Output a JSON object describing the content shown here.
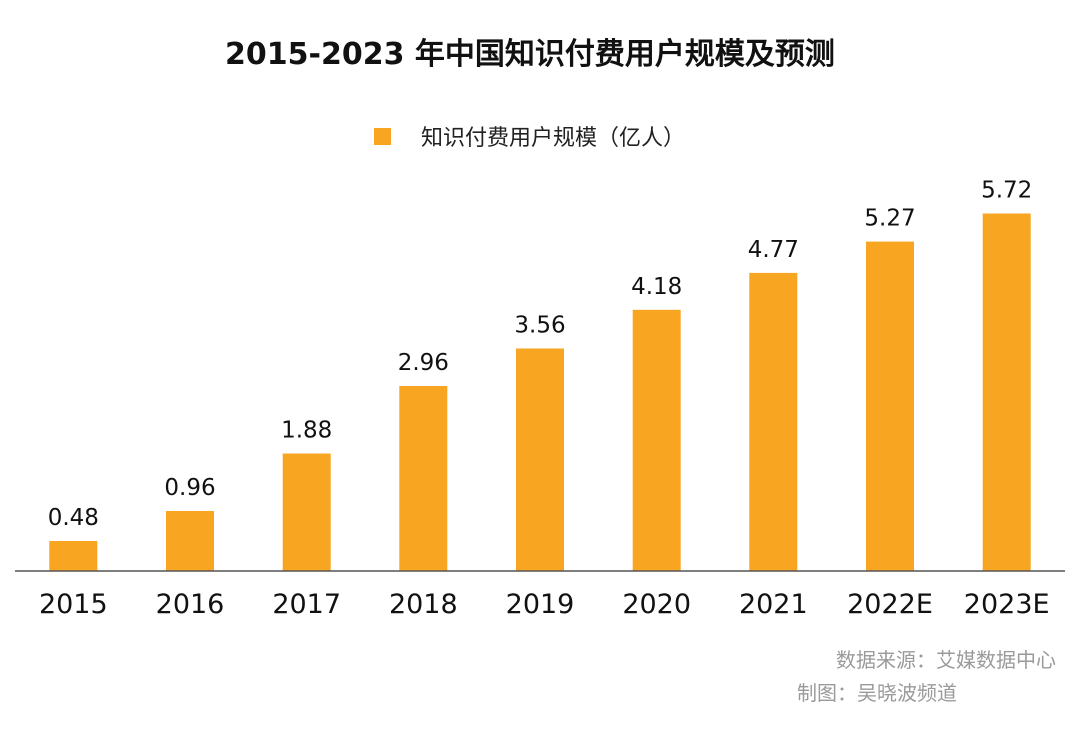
{
  "chart_data": {
    "type": "bar",
    "title": "2015-2023 年中国知识付费用户规模及预测",
    "xlabel": "",
    "ylabel": "",
    "ylim": [
      0,
      6.4
    ],
    "grid": false,
    "legend_position": "top-center",
    "categories": [
      "2015",
      "2016",
      "2017",
      "2018",
      "2019",
      "2020",
      "2021",
      "2022E",
      "2023E"
    ],
    "series": [
      {
        "name": "知识付费用户规模（亿人）",
        "values": [
          0.48,
          0.96,
          1.88,
          2.96,
          3.56,
          4.18,
          4.77,
          5.27,
          5.72
        ],
        "labels": [
          "0.48",
          "0.96",
          "1.88",
          "2.96",
          "3.56",
          "4.18",
          "4.77",
          "5.27",
          "5.72"
        ],
        "color": "#F8A521"
      }
    ],
    "source_note": "数据来源：艾媒数据中心",
    "maker_note": "制图：吴晓波频道"
  },
  "colors": {
    "bar": "#F8A521",
    "axis": "#555555",
    "title": "#111111",
    "footnote": "#9a9a9a"
  }
}
